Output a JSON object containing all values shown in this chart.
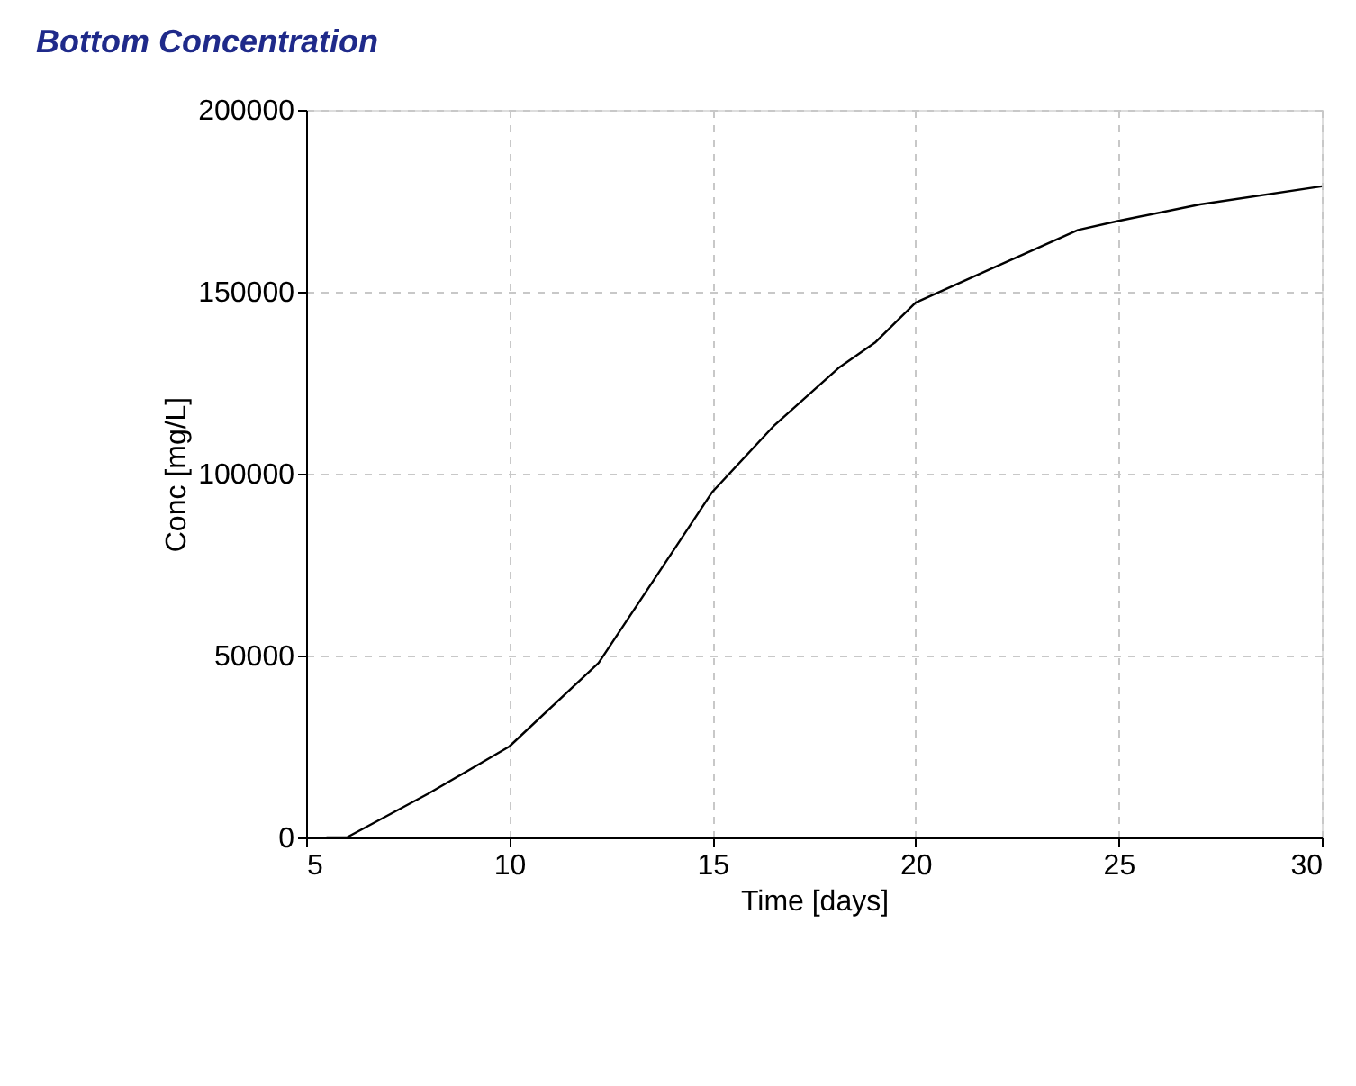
{
  "chart_data": {
    "type": "line",
    "title": "Bottom Concentration",
    "xlabel": "Time [days]",
    "ylabel": "Conc [mg/L]",
    "x": [
      5.5,
      6.0,
      8.0,
      10,
      12.2,
      15,
      16.5,
      18.1,
      19,
      20,
      22,
      24,
      25,
      27,
      30
    ],
    "series": [
      {
        "color": "#000000",
        "values": [
          0,
          0,
          12000,
          25000,
          48000,
          95000,
          113000,
          129000,
          136000,
          147000,
          157000,
          167000,
          169500,
          174000,
          179000
        ]
      }
    ],
    "xlim": [
      5,
      30
    ],
    "xticks": [
      5,
      10,
      15,
      20,
      25,
      30
    ],
    "ylim": [
      0,
      200000
    ],
    "yticks": [
      0,
      50000,
      100000,
      150000,
      200000
    ],
    "grid": true,
    "line_style": "solid",
    "marker": "none"
  }
}
